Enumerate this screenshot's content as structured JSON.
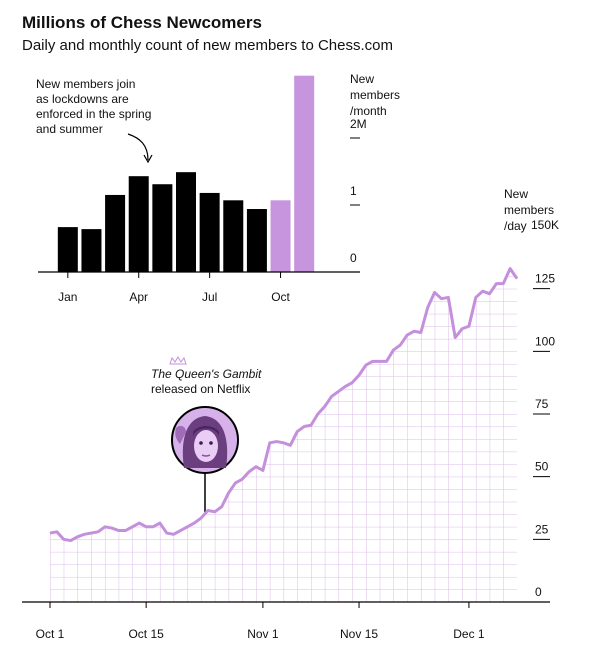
{
  "title": "Millions of Chess Newcomers",
  "subtitle": "Daily and monthly count of new members to Chess.com",
  "chart_data": [
    {
      "type": "bar",
      "categories": [
        "Jan",
        null,
        null,
        "Apr",
        null,
        null,
        "Jul",
        null,
        null,
        "Oct",
        null
      ],
      "values": [
        0.67,
        0.64,
        1.15,
        1.43,
        1.31,
        1.49,
        1.18,
        1.07,
        0.94,
        1.07,
        2.93
      ],
      "colors": [
        "#000000",
        "#000000",
        "#000000",
        "#000000",
        "#000000",
        "#000000",
        "#000000",
        "#000000",
        "#000000",
        "#c795de",
        "#c795de"
      ],
      "ylim": [
        0,
        3
      ],
      "yticks": [
        0,
        1,
        {
          "value": 2,
          "label": "2M"
        }
      ],
      "y_label": [
        "New",
        "members",
        "/month"
      ],
      "annotation": [
        "New members join",
        "as lockdowns are",
        "enforced in the spring",
        "and summer"
      ]
    },
    {
      "type": "line",
      "categories": [
        "Oct 1",
        null,
        null,
        null,
        null,
        null,
        null,
        null,
        null,
        null,
        null,
        null,
        null,
        null,
        "Oct 15",
        null,
        null,
        null,
        null,
        null,
        null,
        null,
        null,
        null,
        null,
        null,
        null,
        null,
        null,
        null,
        null,
        "Nov 1",
        null,
        null,
        null,
        null,
        null,
        null,
        null,
        null,
        null,
        null,
        null,
        null,
        null,
        "Nov 15",
        null,
        null,
        null,
        null,
        null,
        null,
        null,
        null,
        null,
        null,
        null,
        null,
        null,
        null,
        null,
        "Dec 1",
        null,
        null,
        null,
        null,
        null,
        null,
        null
      ],
      "values": [
        27.5,
        28,
        25,
        24.5,
        26,
        27,
        27.5,
        28,
        30,
        29.5,
        28.5,
        28.5,
        30,
        31.5,
        30,
        30,
        31.5,
        27.5,
        27,
        28.5,
        30,
        31.5,
        33.5,
        36.5,
        36,
        38,
        43.5,
        47.5,
        49,
        52,
        54,
        52.5,
        63.5,
        64,
        63.5,
        62.5,
        68,
        70,
        70.5,
        75,
        78,
        82,
        84,
        86,
        87.5,
        90.5,
        94.5,
        96,
        96,
        96,
        100.5,
        102.5,
        106.5,
        108,
        107.5,
        117.5,
        123.5,
        121,
        121.5,
        105.5,
        109,
        110,
        121.5,
        124,
        123,
        127,
        127,
        133,
        129
      ],
      "color": "#c48fdb",
      "grid": true,
      "ylim": [
        0,
        150
      ],
      "yticks": [
        0,
        25,
        50,
        75,
        100,
        125,
        {
          "value": 150,
          "label": "150K"
        }
      ],
      "y_label": [
        "New",
        "members",
        "/day"
      ],
      "annotation": [
        "The Queen's Gambit",
        "released on Netflix"
      ]
    }
  ]
}
